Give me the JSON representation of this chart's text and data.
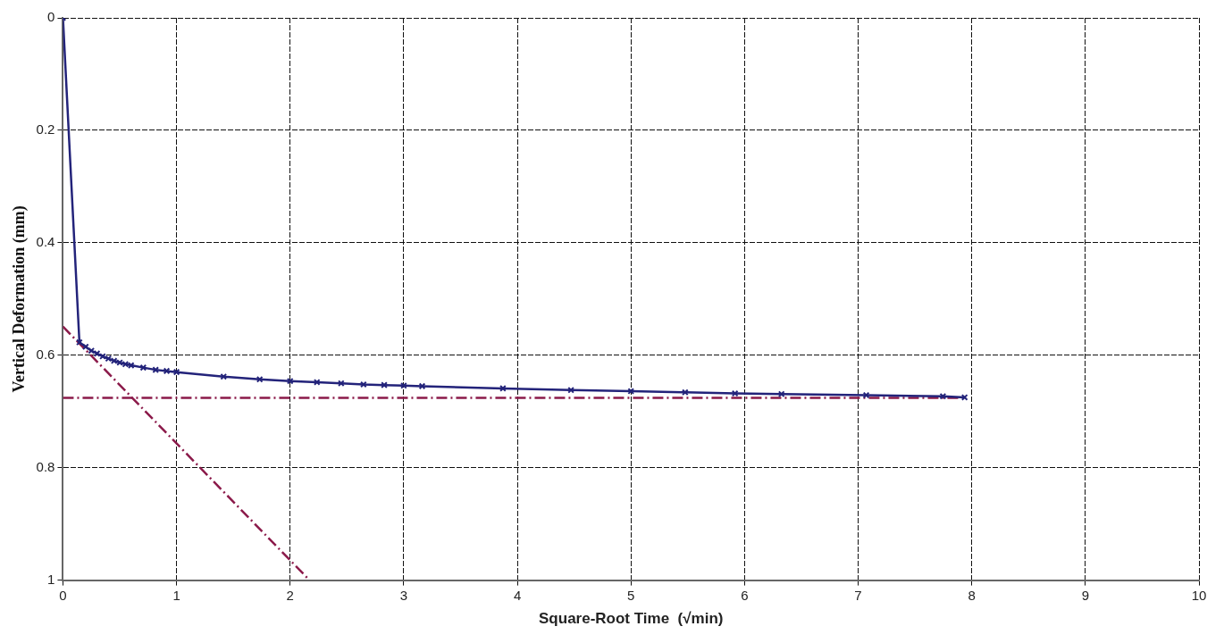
{
  "chart_data": {
    "type": "line",
    "xlabel": "Square-Root Time  (√min)",
    "ylabel": "Vertical Deformation (mm)",
    "xlim": [
      0,
      10
    ],
    "xticks": [
      0,
      1,
      2,
      3,
      4,
      5,
      6,
      7,
      8,
      9,
      10
    ],
    "ylim": [
      1,
      0
    ],
    "yticks": [
      0,
      0.2,
      0.4,
      0.6,
      0.8,
      1
    ],
    "grid": true,
    "legend": false,
    "series": [
      {
        "type": "line",
        "color": "#23237a",
        "marker": "cross",
        "line_style": "solid",
        "x": [
          0,
          0.145,
          0.2,
          0.25,
          0.3,
          0.35,
          0.4,
          0.45,
          0.5,
          0.55,
          0.6,
          0.707,
          0.816,
          0.913,
          1,
          1.414,
          1.732,
          2,
          2.236,
          2.449,
          2.646,
          2.828,
          3,
          3.162,
          3.873,
          4.472,
          5,
          5.477,
          5.916,
          6.325,
          7.071,
          7.746,
          7.937
        ],
        "values": [
          0,
          0.577,
          0.585,
          0.592,
          0.597,
          0.602,
          0.606,
          0.61,
          0.613,
          0.616,
          0.618,
          0.622,
          0.626,
          0.628,
          0.63,
          0.638,
          0.643,
          0.646,
          0.648,
          0.65,
          0.652,
          0.653,
          0.654,
          0.655,
          0.659,
          0.662,
          0.664,
          0.666,
          0.668,
          0.669,
          0.671,
          0.673,
          0.675
        ]
      },
      {
        "type": "line",
        "color": "#8b1a4a",
        "marker": "none",
        "line_style": "dashed",
        "x": [
          0,
          2.17
        ],
        "values": [
          0.549,
          1
        ]
      },
      {
        "type": "line",
        "color": "#8b1a4a",
        "marker": "none",
        "line_style": "dashed",
        "x": [
          0,
          7.9
        ],
        "values": [
          0.676,
          0.676
        ]
      }
    ]
  }
}
